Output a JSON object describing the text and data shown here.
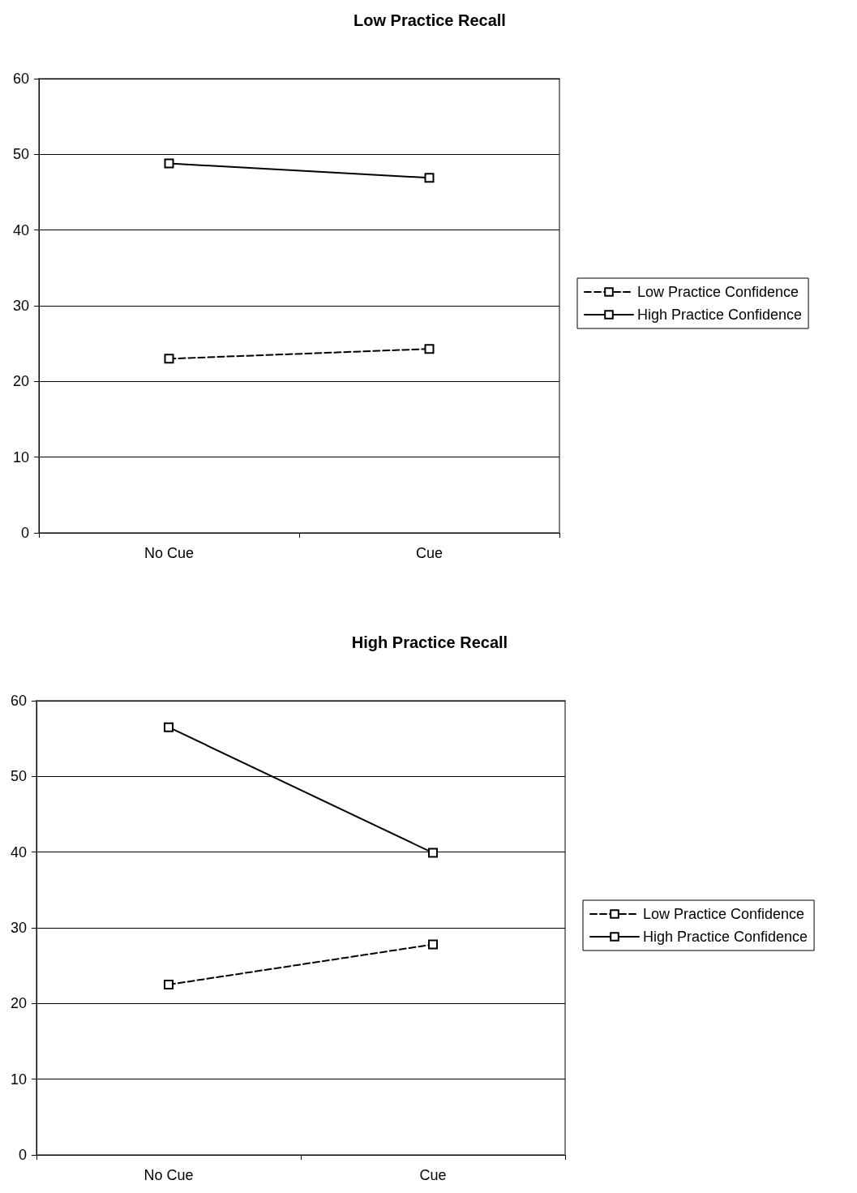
{
  "chart_data": [
    {
      "type": "line",
      "title": "Low Practice Recall",
      "categories": [
        "No Cue",
        "Cue"
      ],
      "ylim": [
        0,
        60
      ],
      "yticks": [
        0,
        10,
        20,
        30,
        40,
        50,
        60
      ],
      "grid": "y",
      "legend": "right",
      "marker": "square",
      "series": [
        {
          "name": "Low Practice Confidence",
          "color": "#000000",
          "line_style": "dashed",
          "values": [
            23.0,
            24.3
          ]
        },
        {
          "name": "High Practice Confidence",
          "color": "#000000",
          "line_style": "solid",
          "values": [
            48.8,
            46.9
          ]
        }
      ]
    },
    {
      "type": "line",
      "title": "High Practice Recall",
      "categories": [
        "No Cue",
        "Cue"
      ],
      "ylim": [
        0,
        60
      ],
      "yticks": [
        0,
        10,
        20,
        30,
        40,
        50,
        60
      ],
      "grid": "y",
      "legend": "right",
      "marker": "square",
      "series": [
        {
          "name": "Low Practice Confidence",
          "color": "#000000",
          "line_style": "dashed",
          "values": [
            22.5,
            27.8
          ]
        },
        {
          "name": "High Practice Confidence",
          "color": "#000000",
          "line_style": "solid",
          "values": [
            56.5,
            39.9
          ]
        }
      ]
    }
  ]
}
